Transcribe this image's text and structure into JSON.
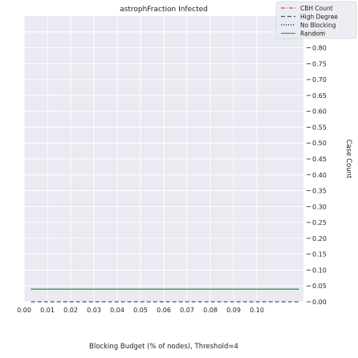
{
  "chart_data": {
    "type": "line",
    "title": "astrophFraction Infected",
    "xlabel": "Blocking Budget (% of nodes), Threshold=4",
    "ylabel": "Case Count",
    "xlim": [
      0.0,
      0.12
    ],
    "ylim": [
      0.0,
      0.9
    ],
    "x_ticks": [
      0.0,
      0.01,
      0.02,
      0.03,
      0.04,
      0.05,
      0.06,
      0.07,
      0.08,
      0.09,
      0.1
    ],
    "x_tick_labels": [
      "0.00",
      "0.01",
      "0.02",
      "0.03",
      "0.04",
      "0.05",
      "0.06",
      "0.07",
      "0.08",
      "0.09",
      "0.10"
    ],
    "y_ticks": [
      0.0,
      0.05,
      0.1,
      0.15,
      0.2,
      0.25,
      0.3,
      0.35,
      0.4,
      0.45,
      0.5,
      0.55,
      0.6,
      0.65,
      0.7,
      0.75,
      0.8,
      0.85
    ],
    "y_tick_labels": [
      "0.00",
      "0.05",
      "0.10",
      "0.15",
      "0.20",
      "0.25",
      "0.30",
      "0.35",
      "0.40",
      "0.45",
      "0.50",
      "0.55",
      "0.60",
      "0.65",
      "0.70",
      "0.75",
      "0.80",
      "0.85"
    ],
    "grid": true,
    "legend_position": "top-right",
    "x": [
      0.003,
      0.118
    ],
    "series": [
      {
        "name": "CBH Count",
        "values": [
          0.04,
          0.04
        ],
        "color": "#d4453d",
        "dash": "dashdot"
      },
      {
        "name": "High Degree",
        "values": [
          0.0,
          0.0
        ],
        "color": "#3b5a7a",
        "dash": "dashed"
      },
      {
        "name": "No Blocking",
        "values": [
          0.04,
          0.04
        ],
        "color": "#222222",
        "dash": "dotted"
      },
      {
        "name": "Random",
        "values": [
          0.04,
          0.04
        ],
        "color": "#4f9a6c",
        "dash": "solid"
      }
    ]
  }
}
